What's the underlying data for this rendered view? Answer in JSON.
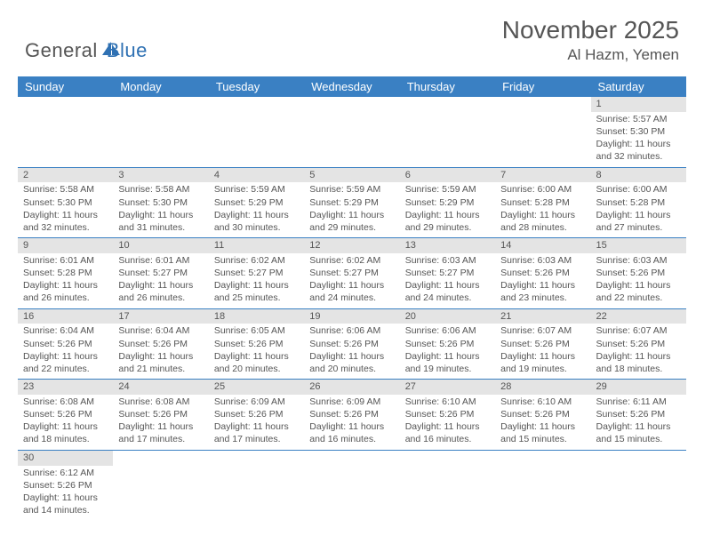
{
  "logo": {
    "text1": "General",
    "text2": "Blue"
  },
  "title": "November 2025",
  "location": "Al Hazm, Yemen",
  "colors": {
    "header_bg": "#3a80c3",
    "band_bg": "#e4e4e4",
    "text": "#555555",
    "border": "#3a80c3",
    "logo_blue": "#2f71b3"
  },
  "weekdays": [
    "Sunday",
    "Monday",
    "Tuesday",
    "Wednesday",
    "Thursday",
    "Friday",
    "Saturday"
  ],
  "weeks": [
    [
      null,
      null,
      null,
      null,
      null,
      null,
      {
        "n": "1",
        "sr": "Sunrise: 5:57 AM",
        "ss": "Sunset: 5:30 PM",
        "d1": "Daylight: 11 hours",
        "d2": "and 32 minutes."
      }
    ],
    [
      {
        "n": "2",
        "sr": "Sunrise: 5:58 AM",
        "ss": "Sunset: 5:30 PM",
        "d1": "Daylight: 11 hours",
        "d2": "and 32 minutes."
      },
      {
        "n": "3",
        "sr": "Sunrise: 5:58 AM",
        "ss": "Sunset: 5:30 PM",
        "d1": "Daylight: 11 hours",
        "d2": "and 31 minutes."
      },
      {
        "n": "4",
        "sr": "Sunrise: 5:59 AM",
        "ss": "Sunset: 5:29 PM",
        "d1": "Daylight: 11 hours",
        "d2": "and 30 minutes."
      },
      {
        "n": "5",
        "sr": "Sunrise: 5:59 AM",
        "ss": "Sunset: 5:29 PM",
        "d1": "Daylight: 11 hours",
        "d2": "and 29 minutes."
      },
      {
        "n": "6",
        "sr": "Sunrise: 5:59 AM",
        "ss": "Sunset: 5:29 PM",
        "d1": "Daylight: 11 hours",
        "d2": "and 29 minutes."
      },
      {
        "n": "7",
        "sr": "Sunrise: 6:00 AM",
        "ss": "Sunset: 5:28 PM",
        "d1": "Daylight: 11 hours",
        "d2": "and 28 minutes."
      },
      {
        "n": "8",
        "sr": "Sunrise: 6:00 AM",
        "ss": "Sunset: 5:28 PM",
        "d1": "Daylight: 11 hours",
        "d2": "and 27 minutes."
      }
    ],
    [
      {
        "n": "9",
        "sr": "Sunrise: 6:01 AM",
        "ss": "Sunset: 5:28 PM",
        "d1": "Daylight: 11 hours",
        "d2": "and 26 minutes."
      },
      {
        "n": "10",
        "sr": "Sunrise: 6:01 AM",
        "ss": "Sunset: 5:27 PM",
        "d1": "Daylight: 11 hours",
        "d2": "and 26 minutes."
      },
      {
        "n": "11",
        "sr": "Sunrise: 6:02 AM",
        "ss": "Sunset: 5:27 PM",
        "d1": "Daylight: 11 hours",
        "d2": "and 25 minutes."
      },
      {
        "n": "12",
        "sr": "Sunrise: 6:02 AM",
        "ss": "Sunset: 5:27 PM",
        "d1": "Daylight: 11 hours",
        "d2": "and 24 minutes."
      },
      {
        "n": "13",
        "sr": "Sunrise: 6:03 AM",
        "ss": "Sunset: 5:27 PM",
        "d1": "Daylight: 11 hours",
        "d2": "and 24 minutes."
      },
      {
        "n": "14",
        "sr": "Sunrise: 6:03 AM",
        "ss": "Sunset: 5:26 PM",
        "d1": "Daylight: 11 hours",
        "d2": "and 23 minutes."
      },
      {
        "n": "15",
        "sr": "Sunrise: 6:03 AM",
        "ss": "Sunset: 5:26 PM",
        "d1": "Daylight: 11 hours",
        "d2": "and 22 minutes."
      }
    ],
    [
      {
        "n": "16",
        "sr": "Sunrise: 6:04 AM",
        "ss": "Sunset: 5:26 PM",
        "d1": "Daylight: 11 hours",
        "d2": "and 22 minutes."
      },
      {
        "n": "17",
        "sr": "Sunrise: 6:04 AM",
        "ss": "Sunset: 5:26 PM",
        "d1": "Daylight: 11 hours",
        "d2": "and 21 minutes."
      },
      {
        "n": "18",
        "sr": "Sunrise: 6:05 AM",
        "ss": "Sunset: 5:26 PM",
        "d1": "Daylight: 11 hours",
        "d2": "and 20 minutes."
      },
      {
        "n": "19",
        "sr": "Sunrise: 6:06 AM",
        "ss": "Sunset: 5:26 PM",
        "d1": "Daylight: 11 hours",
        "d2": "and 20 minutes."
      },
      {
        "n": "20",
        "sr": "Sunrise: 6:06 AM",
        "ss": "Sunset: 5:26 PM",
        "d1": "Daylight: 11 hours",
        "d2": "and 19 minutes."
      },
      {
        "n": "21",
        "sr": "Sunrise: 6:07 AM",
        "ss": "Sunset: 5:26 PM",
        "d1": "Daylight: 11 hours",
        "d2": "and 19 minutes."
      },
      {
        "n": "22",
        "sr": "Sunrise: 6:07 AM",
        "ss": "Sunset: 5:26 PM",
        "d1": "Daylight: 11 hours",
        "d2": "and 18 minutes."
      }
    ],
    [
      {
        "n": "23",
        "sr": "Sunrise: 6:08 AM",
        "ss": "Sunset: 5:26 PM",
        "d1": "Daylight: 11 hours",
        "d2": "and 18 minutes."
      },
      {
        "n": "24",
        "sr": "Sunrise: 6:08 AM",
        "ss": "Sunset: 5:26 PM",
        "d1": "Daylight: 11 hours",
        "d2": "and 17 minutes."
      },
      {
        "n": "25",
        "sr": "Sunrise: 6:09 AM",
        "ss": "Sunset: 5:26 PM",
        "d1": "Daylight: 11 hours",
        "d2": "and 17 minutes."
      },
      {
        "n": "26",
        "sr": "Sunrise: 6:09 AM",
        "ss": "Sunset: 5:26 PM",
        "d1": "Daylight: 11 hours",
        "d2": "and 16 minutes."
      },
      {
        "n": "27",
        "sr": "Sunrise: 6:10 AM",
        "ss": "Sunset: 5:26 PM",
        "d1": "Daylight: 11 hours",
        "d2": "and 16 minutes."
      },
      {
        "n": "28",
        "sr": "Sunrise: 6:10 AM",
        "ss": "Sunset: 5:26 PM",
        "d1": "Daylight: 11 hours",
        "d2": "and 15 minutes."
      },
      {
        "n": "29",
        "sr": "Sunrise: 6:11 AM",
        "ss": "Sunset: 5:26 PM",
        "d1": "Daylight: 11 hours",
        "d2": "and 15 minutes."
      }
    ],
    [
      {
        "n": "30",
        "sr": "Sunrise: 6:12 AM",
        "ss": "Sunset: 5:26 PM",
        "d1": "Daylight: 11 hours",
        "d2": "and 14 minutes."
      },
      null,
      null,
      null,
      null,
      null,
      null
    ]
  ]
}
